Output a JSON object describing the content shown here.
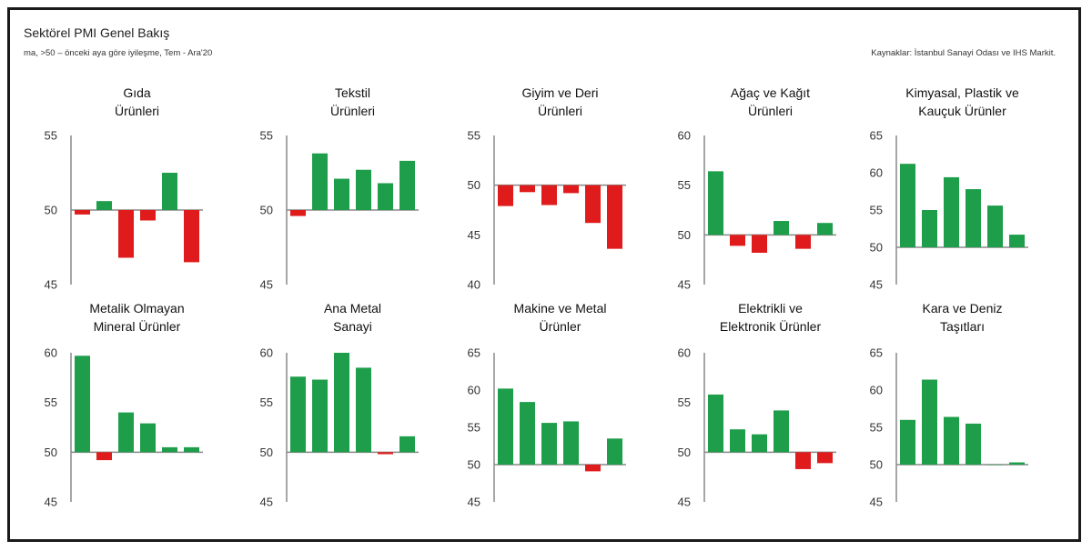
{
  "header": {
    "title": "Sektörel PMI Genel Bakış",
    "subtitle": "ma, >50 – önceki aya göre iyileşme,    Tem - Ara'20",
    "source": "Kaynaklar: İstanbul Sanayi Odası ve IHS Markit."
  },
  "colors": {
    "positive": "#1e9e4a",
    "negative": "#e01b1b",
    "axis": "#888888"
  },
  "chart_data": [
    {
      "type": "bar",
      "title": [
        "Gıda",
        "Ürünleri"
      ],
      "baseline": 50,
      "ylim": [
        45,
        55
      ],
      "yticks": [
        45,
        50,
        55
      ],
      "values": [
        49.7,
        50.6,
        46.8,
        49.3,
        52.5,
        46.5
      ]
    },
    {
      "type": "bar",
      "title": [
        "Tekstil",
        "Ürünleri"
      ],
      "baseline": 50,
      "ylim": [
        45,
        55
      ],
      "yticks": [
        45,
        50,
        55
      ],
      "values": [
        49.6,
        53.8,
        52.1,
        52.7,
        51.8,
        53.3
      ]
    },
    {
      "type": "bar",
      "title": [
        "Giyim ve Deri",
        "Ürünleri"
      ],
      "baseline": 50,
      "ylim": [
        40,
        55
      ],
      "yticks": [
        40,
        45,
        50,
        55
      ],
      "values": [
        47.9,
        49.3,
        48.0,
        49.2,
        46.2,
        43.6
      ]
    },
    {
      "type": "bar",
      "title": [
        "Ağaç ve Kağıt",
        "Ürünleri"
      ],
      "baseline": 50,
      "ylim": [
        45,
        60
      ],
      "yticks": [
        45,
        50,
        55,
        60
      ],
      "values": [
        56.4,
        48.9,
        48.2,
        51.4,
        48.6,
        51.2
      ]
    },
    {
      "type": "bar",
      "title": [
        "Kimyasal, Plastik ve",
        "Kauçuk Ürünler"
      ],
      "baseline": 50,
      "ylim": [
        45,
        65
      ],
      "yticks": [
        45,
        50,
        55,
        60,
        65
      ],
      "values": [
        61.2,
        55.0,
        59.4,
        57.8,
        55.6,
        51.7
      ]
    },
    {
      "type": "bar",
      "title": [
        "Metalik Olmayan",
        "Mineral Ürünler"
      ],
      "baseline": 50,
      "ylim": [
        45,
        60
      ],
      "yticks": [
        45,
        50,
        55,
        60
      ],
      "values": [
        59.7,
        49.2,
        54.0,
        52.9,
        50.5,
        50.5
      ]
    },
    {
      "type": "bar",
      "title": [
        "Ana Metal",
        "Sanayi"
      ],
      "baseline": 50,
      "ylim": [
        45,
        60
      ],
      "yticks": [
        45,
        50,
        55,
        60
      ],
      "values": [
        57.6,
        57.3,
        60.0,
        58.5,
        49.8,
        51.6
      ]
    },
    {
      "type": "bar",
      "title": [
        "Makine ve Metal",
        "Ürünler"
      ],
      "baseline": 50,
      "ylim": [
        45,
        65
      ],
      "yticks": [
        45,
        50,
        55,
        60,
        65
      ],
      "values": [
        60.2,
        58.4,
        55.6,
        55.8,
        49.1,
        53.5
      ]
    },
    {
      "type": "bar",
      "title": [
        "Elektrikli ve",
        "Elektronik Ürünler"
      ],
      "baseline": 50,
      "ylim": [
        45,
        60
      ],
      "yticks": [
        45,
        50,
        55,
        60
      ],
      "values": [
        55.8,
        52.3,
        51.8,
        54.2,
        48.3,
        48.9
      ]
    },
    {
      "type": "bar",
      "title": [
        "Kara ve Deniz",
        "Taşıtları"
      ],
      "baseline": 50,
      "ylim": [
        45,
        65
      ],
      "yticks": [
        45,
        50,
        55,
        60,
        65
      ],
      "values": [
        56.0,
        61.4,
        56.4,
        55.5,
        50.0,
        50.3
      ]
    }
  ]
}
